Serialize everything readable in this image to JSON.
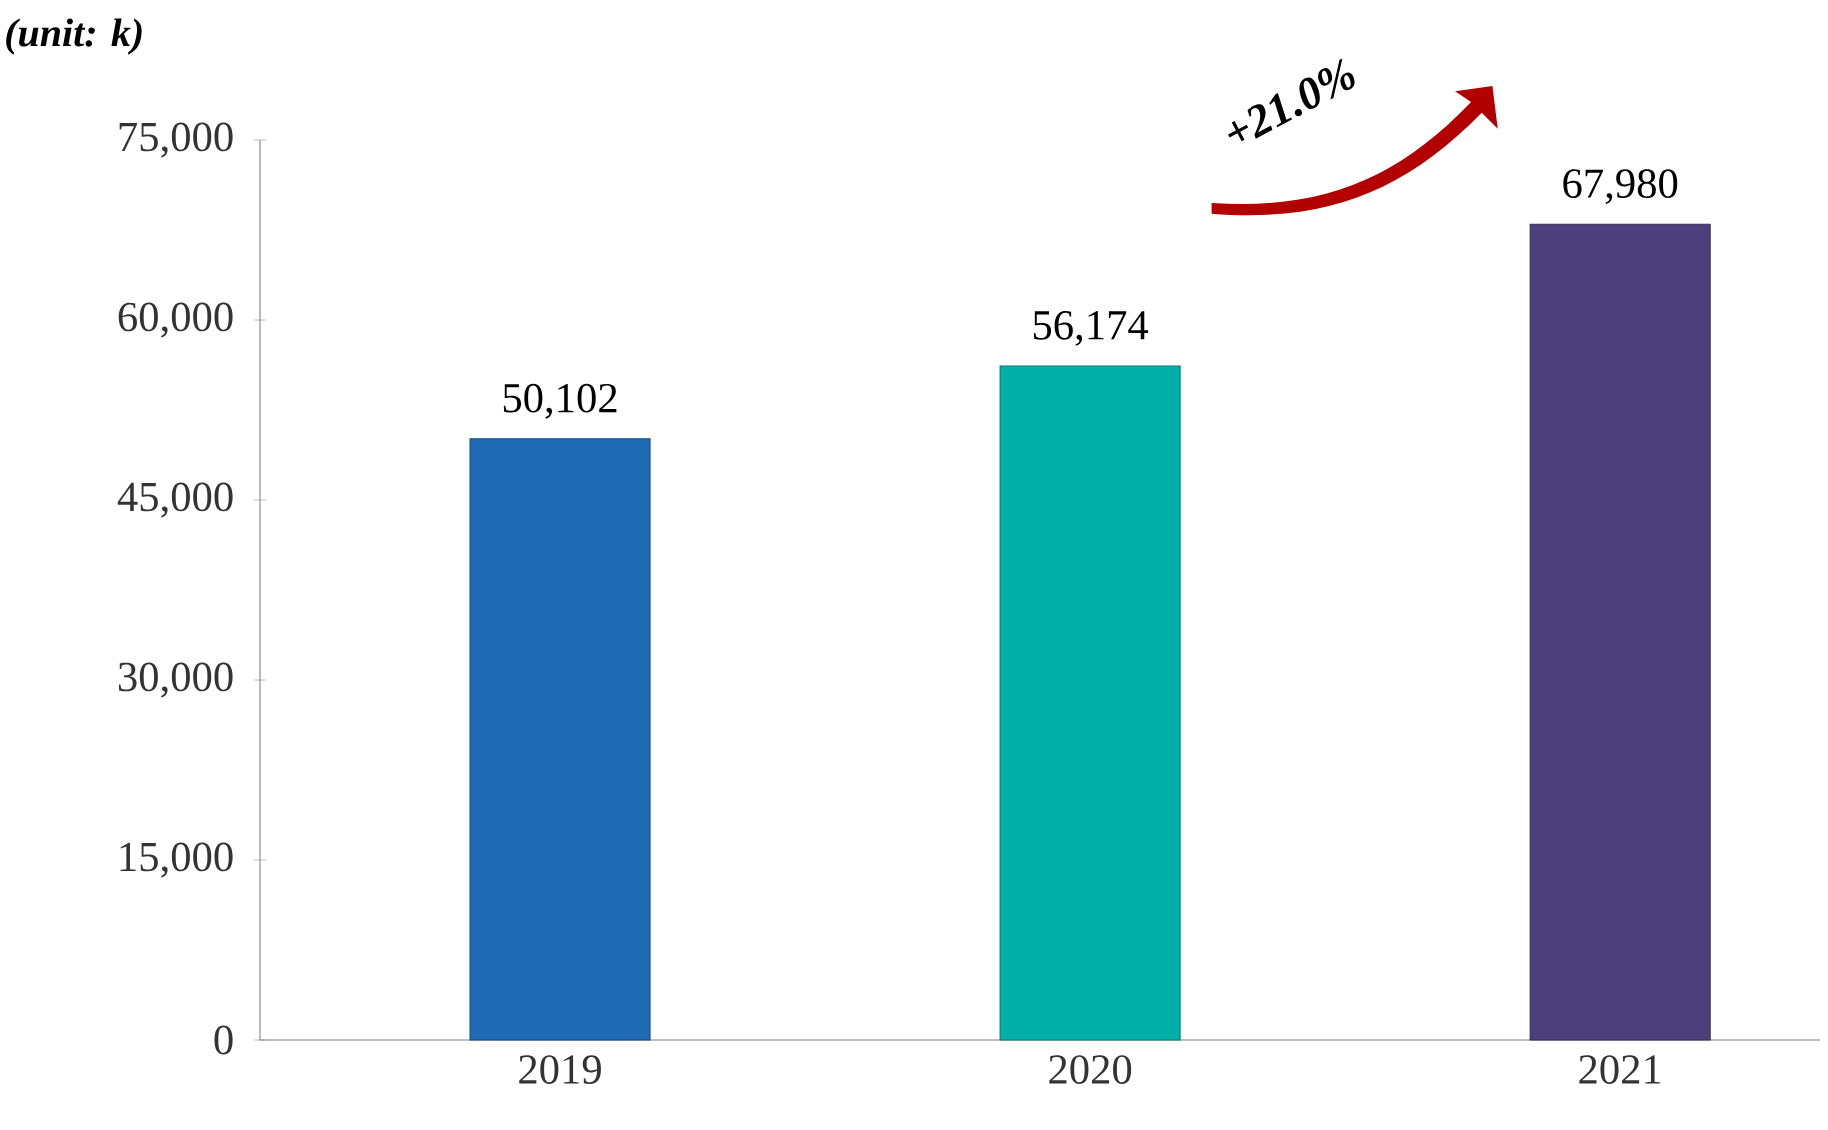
{
  "chart_data": {
    "type": "bar",
    "categories": [
      "2019",
      "2020",
      "2021"
    ],
    "values": [
      50102,
      56174,
      67980
    ],
    "colors": [
      "#1f6bb5",
      "#00b0a8",
      "#4b3f7c"
    ],
    "value_labels": [
      "50,102",
      "56,174",
      "67,980"
    ],
    "ylim": [
      0,
      75000
    ],
    "yticks": [
      0,
      {
        "value": 15000,
        "label": "15,000"
      },
      {
        "value": 30000,
        "label": "30,000"
      },
      {
        "value": 45000,
        "label": "45,000"
      },
      {
        "value": 60000,
        "label": "60,000"
      },
      {
        "value": 75000,
        "label": "75,000"
      }
    ],
    "grid": false,
    "annotations": [
      "(unit: k)",
      "+21.0%"
    ]
  }
}
